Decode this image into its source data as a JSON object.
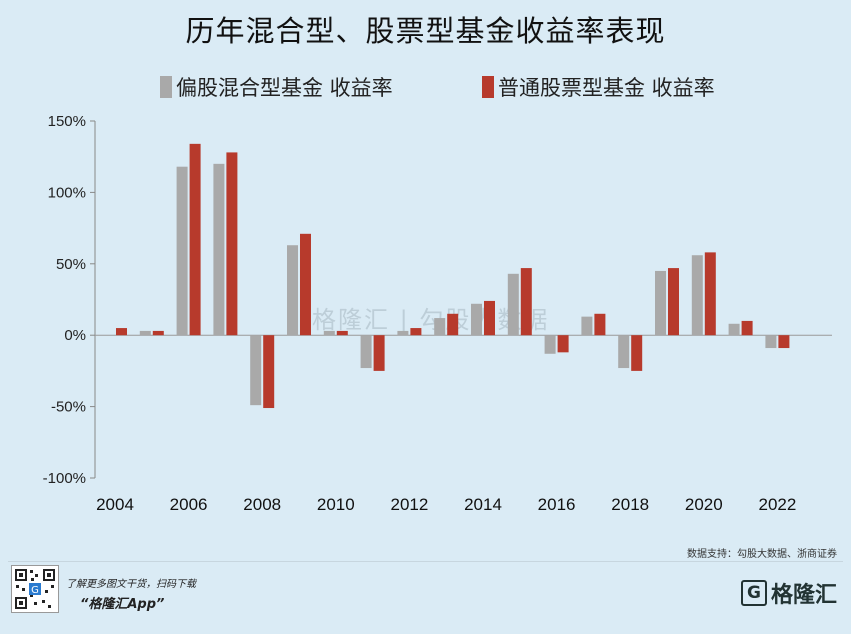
{
  "page": {
    "title": "历年混合型、股票型基金收益率表现"
  },
  "legend": {
    "items": [
      {
        "label": "偏股混合型基金 收益率",
        "color": "#a9a9a9"
      },
      {
        "label": "普通股票型基金 收益率",
        "color": "#b73a2c"
      }
    ]
  },
  "chart_data": {
    "type": "bar",
    "title": "历年混合型、股票型基金收益率表现",
    "xlabel": "",
    "ylabel": "",
    "categories": [
      "2004",
      "2005",
      "2006",
      "2007",
      "2008",
      "2009",
      "2010",
      "2011",
      "2012",
      "2013",
      "2014",
      "2015",
      "2016",
      "2017",
      "2018",
      "2019",
      "2020",
      "2021",
      "2022"
    ],
    "tick_labels": [
      "2004",
      "2006",
      "2008",
      "2010",
      "2012",
      "2014",
      "2016",
      "2018",
      "2020",
      "2022"
    ],
    "ylim": [
      -100,
      150
    ],
    "yticks": [
      -100,
      -50,
      0,
      50,
      100,
      150
    ],
    "ytick_labels": [
      "-100%",
      "-50%",
      "0%",
      "50%",
      "100%",
      "150%"
    ],
    "grid": false,
    "legend_position": "top",
    "series": [
      {
        "name": "偏股混合型基金 收益率",
        "color": "#a9a9a9",
        "values": [
          null,
          3,
          118,
          120,
          -49,
          63,
          3,
          -23,
          3,
          12,
          22,
          43,
          -13,
          13,
          -23,
          45,
          56,
          8,
          -9
        ]
      },
      {
        "name": "普通股票型基金 收益率",
        "color": "#b73a2c",
        "values": [
          5,
          3,
          134,
          128,
          -51,
          71,
          3,
          -25,
          5,
          15,
          24,
          47,
          -12,
          15,
          -25,
          47,
          58,
          10,
          -9
        ]
      }
    ]
  },
  "watermark": {
    "text": "格隆汇 | 勾股大数据"
  },
  "footer": {
    "source": "数据支持：勾股大数据、浙商证券",
    "promo": "了解更多图文干货，扫码下载",
    "app_name": "“格隆汇App”",
    "brand_mark": "G",
    "brand_name": "格隆汇"
  }
}
